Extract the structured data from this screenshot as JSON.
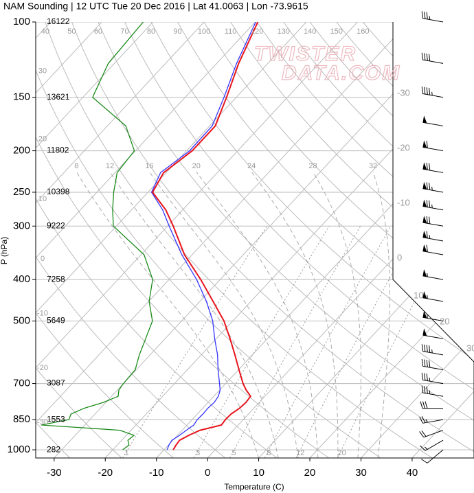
{
  "chart_data": {
    "type": "skewt",
    "title": "NAM Sounding | 12 UTC Tue 20 Dec 2016 | Lat 41.0063 | Lon -73.9615",
    "x_label": "Temperature (C)",
    "y_label": "P (hPa)",
    "watermark": [
      "TWISTER",
      "DATA.COM"
    ],
    "xlim": [
      -33.6,
      52.1
    ],
    "xticks": [
      -30,
      -20,
      -10,
      0,
      10,
      20,
      30,
      40
    ],
    "ylim": [
      1045,
      100
    ],
    "yticks": [
      100,
      150,
      200,
      250,
      300,
      400,
      500,
      700,
      850,
      1000
    ],
    "log_y": true,
    "grid": true,
    "heights": [
      16122,
      13621,
      11802,
      10398,
      9222,
      7258,
      5649,
      3087,
      1553,
      282
    ],
    "isotherm_labels": [
      -30,
      -20,
      -10,
      0,
      10,
      20,
      30
    ],
    "dry_adiabat_labels": [
      -30,
      -20,
      -10,
      0,
      10,
      20,
      30,
      40,
      50,
      60,
      70,
      80,
      90,
      100,
      110,
      120,
      130,
      140,
      150,
      160
    ],
    "moist_adiabat_labels": [
      8,
      12,
      16,
      20,
      24,
      28,
      32
    ],
    "mixing_ratio_labels": [
      1,
      3,
      5,
      8,
      12,
      20
    ],
    "levels": [
      1000,
      975,
      950,
      925,
      900,
      875,
      850,
      825,
      800,
      775,
      750,
      725,
      700,
      650,
      600,
      550,
      500,
      450,
      400,
      350,
      300,
      275,
      250,
      225,
      200,
      175,
      150,
      125,
      100
    ],
    "series": [
      {
        "color": "#1a8a1a",
        "values": [
          -18.1,
          -17.7,
          -18.8,
          -18.5,
          -22.2,
          -38.5,
          -34.1,
          -34.7,
          -33.2,
          -30.5,
          -28.7,
          -29.7,
          -30.0,
          -30.2,
          -32.1,
          -33.8,
          -35.7,
          -39.9,
          -43.2,
          -49.4,
          -60.6,
          -63.7,
          -66.7,
          -69.6,
          -70.2,
          -76.4,
          -88.1,
          -91.2,
          -91.9
        ]
      },
      {
        "color": "#3333ff",
        "values": [
          -9.4,
          -9.9,
          -10.2,
          -9.6,
          -9.2,
          -8.7,
          -9.0,
          -8.9,
          -9.0,
          -8.8,
          -9.1,
          -9.9,
          -11.2,
          -14.0,
          -16.8,
          -20.3,
          -23.9,
          -28.7,
          -34.6,
          -42.0,
          -49.7,
          -53.9,
          -59.3,
          -61.1,
          -59.4,
          -59.5,
          -62.4,
          -66.1,
          -69.9
        ]
      },
      {
        "color": "#e8141c",
        "values": [
          -8.2,
          -8.5,
          -8.7,
          -7.8,
          -6.5,
          -3.3,
          -3.5,
          -3.4,
          -2.8,
          -2.6,
          -2.8,
          -4.8,
          -6.6,
          -9.9,
          -13.4,
          -17.3,
          -21.7,
          -27.4,
          -33.8,
          -41.5,
          -48.9,
          -53.3,
          -59.1,
          -60.5,
          -58.9,
          -58.9,
          -61.9,
          -65.7,
          -69.5
        ]
      }
    ],
    "wind": {
      "levels": [
        100,
        125,
        150,
        175,
        200,
        225,
        250,
        275,
        300,
        325,
        350,
        400,
        450,
        500,
        550,
        600,
        650,
        700,
        750,
        800,
        850,
        900,
        950,
        1000
      ],
      "speed": [
        35,
        40,
        45,
        50,
        60,
        70,
        75,
        75,
        70,
        65,
        60,
        55,
        55,
        55,
        50,
        45,
        40,
        35,
        35,
        30,
        25,
        20,
        15,
        10
      ],
      "direction": [
        280,
        280,
        280,
        280,
        280,
        280,
        280,
        280,
        280,
        280,
        280,
        280,
        280,
        280,
        280,
        280,
        280,
        280,
        280,
        270,
        260,
        250,
        240,
        230
      ]
    }
  }
}
